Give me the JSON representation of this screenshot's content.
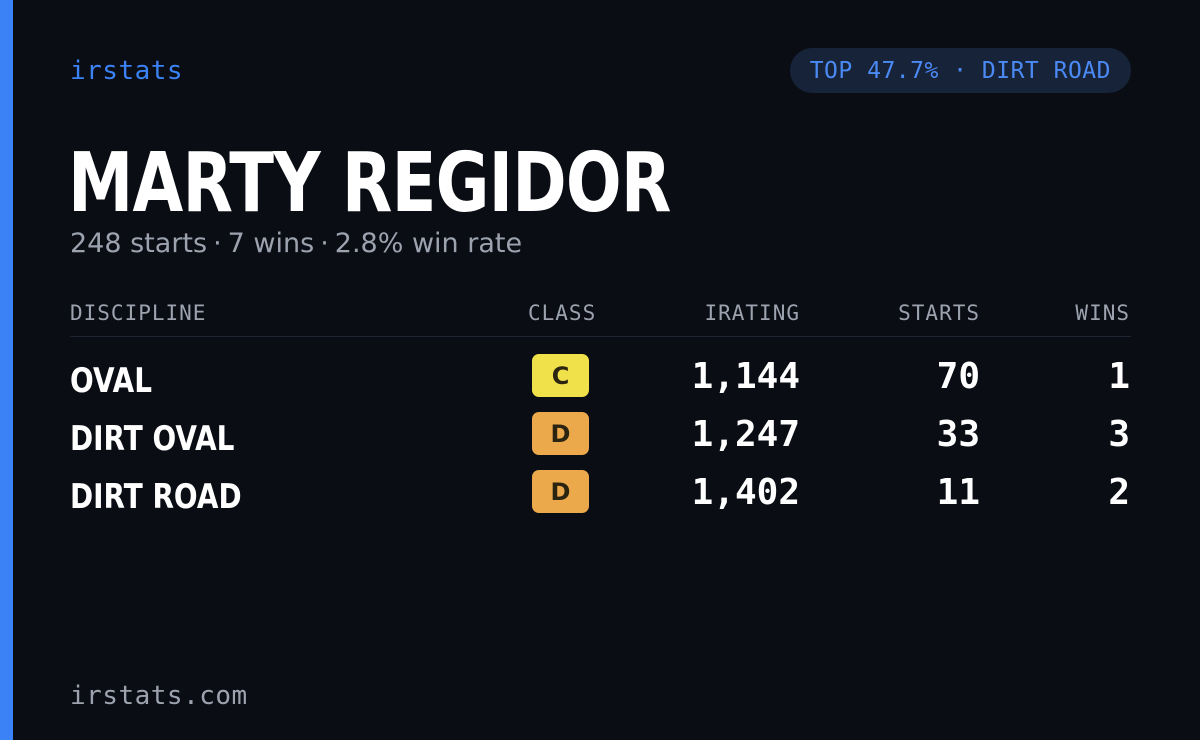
{
  "brand": "irstats",
  "pill": "TOP 47.7% · DIRT ROAD",
  "driver": {
    "name": "MARTY REGIDOR",
    "starts_text": "248 starts",
    "wins_text": "7 wins",
    "winrate_text": "2.8% win rate",
    "separator": "·"
  },
  "table": {
    "headers": {
      "discipline": "DISCIPLINE",
      "class": "CLASS",
      "irating": "IRATING",
      "starts": "STARTS",
      "wins": "WINS"
    },
    "rows": [
      {
        "discipline": "OVAL",
        "class": "C",
        "class_color": "#f0e14a",
        "irating": "1,144",
        "starts": "70",
        "wins": "1"
      },
      {
        "discipline": "DIRT OVAL",
        "class": "D",
        "class_color": "#eba94b",
        "irating": "1,247",
        "starts": "33",
        "wins": "3"
      },
      {
        "discipline": "DIRT ROAD",
        "class": "D",
        "class_color": "#eba94b",
        "irating": "1,402",
        "starts": "11",
        "wins": "2"
      }
    ]
  },
  "footer": "irstats.com",
  "colors": {
    "background": "#0a0d14",
    "accent": "#3b82f6",
    "pill_bg": "#172338",
    "muted": "#9ca3af"
  }
}
